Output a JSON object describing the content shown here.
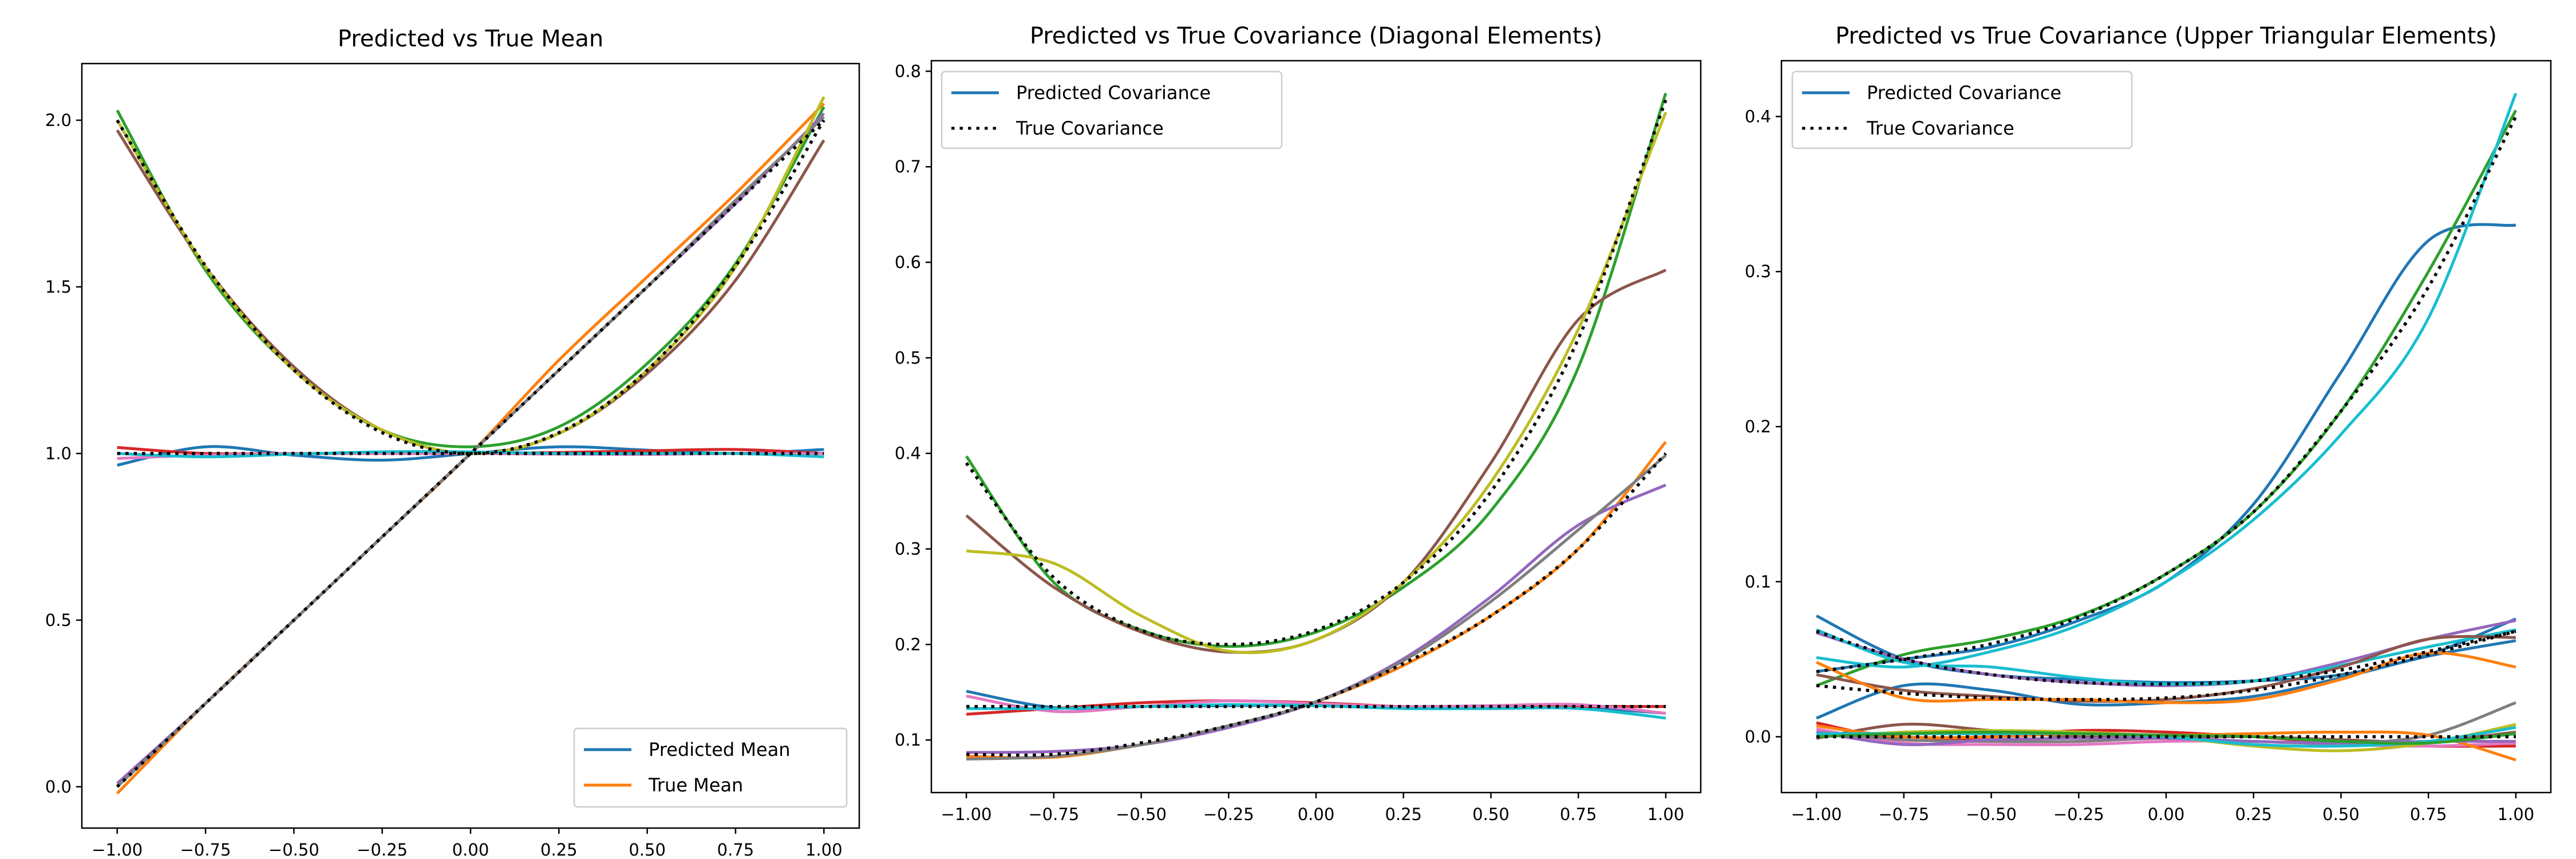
{
  "chart_data": [
    {
      "type": "line",
      "title": "Predicted vs True Mean",
      "xlabel": "",
      "ylabel": "",
      "xlim": [
        -1.1,
        1.1
      ],
      "ylim": [
        -0.124,
        2.17
      ],
      "xticks": [
        -1.0,
        -0.75,
        -0.5,
        -0.25,
        0.0,
        0.25,
        0.5,
        0.75,
        1.0
      ],
      "xtick_labels": [
        "−1.00",
        "−0.75",
        "−0.50",
        "−0.25",
        "0.00",
        "0.25",
        "0.50",
        "0.75",
        "1.00"
      ],
      "yticks": [
        0.0,
        0.5,
        1.0,
        1.5,
        2.0
      ],
      "ytick_labels": [
        "0.0",
        "0.5",
        "1.0",
        "1.5",
        "2.0"
      ],
      "legend": {
        "placement": "lower-right",
        "entries": [
          {
            "label": "Predicted Mean",
            "color": "#1f77b4",
            "style": "solid"
          },
          {
            "label": "True Mean",
            "color": "#ff7f0e",
            "style": "solid"
          }
        ]
      },
      "x": [
        -1.0,
        -0.75,
        -0.5,
        -0.25,
        0.0,
        0.25,
        0.5,
        0.75,
        1.0
      ],
      "series": [
        {
          "name": "pred-1",
          "color": "#1f77b4",
          "style": "solid",
          "values": [
            0.965,
            1.02,
            0.995,
            0.98,
            1.0,
            1.02,
            1.01,
            1.0,
            1.012
          ]
        },
        {
          "name": "pred-2",
          "color": "#ff7f0e",
          "style": "solid",
          "values": [
            -0.02,
            0.25,
            0.5,
            0.75,
            1.0,
            1.28,
            1.53,
            1.78,
            2.05
          ]
        },
        {
          "name": "pred-3",
          "color": "#2ca02c",
          "style": "solid",
          "values": [
            2.03,
            1.55,
            1.25,
            1.07,
            1.02,
            1.08,
            1.27,
            1.57,
            2.04
          ]
        },
        {
          "name": "pred-4",
          "color": "#d62728",
          "style": "solid",
          "values": [
            1.018,
            1.0,
            1.0,
            1.0,
            1.0,
            1.003,
            1.008,
            1.012,
            1.0
          ]
        },
        {
          "name": "pred-5",
          "color": "#9467bd",
          "style": "solid",
          "values": [
            0.01,
            0.25,
            0.5,
            0.75,
            1.0,
            1.25,
            1.5,
            1.75,
            2.02
          ]
        },
        {
          "name": "pred-6",
          "color": "#8c564b",
          "style": "solid",
          "values": [
            1.97,
            1.56,
            1.26,
            1.07,
            1.0,
            1.06,
            1.24,
            1.52,
            1.94
          ]
        },
        {
          "name": "pred-7",
          "color": "#e377c2",
          "style": "solid",
          "values": [
            0.985,
            0.995,
            1.0,
            1.0,
            1.0,
            0.998,
            0.997,
            1.0,
            1.0
          ]
        },
        {
          "name": "pred-8",
          "color": "#7f7f7f",
          "style": "solid",
          "values": [
            0.0,
            0.25,
            0.5,
            0.75,
            1.0,
            1.25,
            1.5,
            1.76,
            2.01
          ]
        },
        {
          "name": "pred-9",
          "color": "#bcbd22",
          "style": "solid",
          "values": [
            2.0,
            1.56,
            1.25,
            1.07,
            1.0,
            1.06,
            1.25,
            1.56,
            2.07
          ]
        },
        {
          "name": "pred-10",
          "color": "#17becf",
          "style": "solid",
          "values": [
            1.0,
            0.99,
            0.998,
            1.005,
            1.005,
            1.0,
            1.0,
            1.0,
            0.99
          ]
        },
        {
          "name": "true-1",
          "color": "#000000",
          "style": "dotted",
          "values": [
            1.0,
            1.0,
            1.0,
            1.0,
            1.0,
            1.0,
            1.0,
            1.0,
            1.0
          ]
        },
        {
          "name": "true-2",
          "color": "#000000",
          "style": "dotted",
          "values": [
            0.0,
            0.25,
            0.5,
            0.75,
            1.0,
            1.25,
            1.5,
            1.75,
            2.0
          ]
        },
        {
          "name": "true-3",
          "color": "#000000",
          "style": "dotted",
          "values": [
            2.0,
            1.5625,
            1.25,
            1.0625,
            1.0,
            1.0625,
            1.25,
            1.5625,
            2.0
          ]
        }
      ]
    },
    {
      "type": "line",
      "title": "Predicted vs True Covariance (Diagonal Elements)",
      "xlabel": "",
      "ylabel": "",
      "xlim": [
        -1.1,
        1.1
      ],
      "ylim": [
        0.045,
        0.811
      ],
      "xticks": [
        -1.0,
        -0.75,
        -0.5,
        -0.25,
        0.0,
        0.25,
        0.5,
        0.75,
        1.0
      ],
      "xtick_labels": [
        "−1.00",
        "−0.75",
        "−0.50",
        "−0.25",
        "0.00",
        "0.25",
        "0.50",
        "0.75",
        "1.00"
      ],
      "yticks": [
        0.1,
        0.2,
        0.3,
        0.4,
        0.5,
        0.6,
        0.7,
        0.8
      ],
      "ytick_labels": [
        "0.1",
        "0.2",
        "0.3",
        "0.4",
        "0.5",
        "0.6",
        "0.7",
        "0.8"
      ],
      "legend": {
        "placement": "upper-left",
        "entries": [
          {
            "label": "Predicted Covariance",
            "color": "#1f77b4",
            "style": "solid"
          },
          {
            "label": "True Covariance",
            "color": "#000000",
            "style": "dotted"
          }
        ]
      },
      "x": [
        -1.0,
        -0.75,
        -0.5,
        -0.25,
        0.0,
        0.25,
        0.5,
        0.75,
        1.0
      ],
      "series": [
        {
          "name": "pred-1",
          "color": "#1f77b4",
          "style": "solid",
          "values": [
            0.151,
            0.134,
            0.135,
            0.136,
            0.136,
            0.134,
            0.133,
            0.134,
            0.128
          ]
        },
        {
          "name": "pred-2",
          "color": "#ff7f0e",
          "style": "solid",
          "values": [
            0.083,
            0.082,
            0.095,
            0.114,
            0.14,
            0.178,
            0.23,
            0.3,
            0.412
          ]
        },
        {
          "name": "pred-3",
          "color": "#2ca02c",
          "style": "solid",
          "values": [
            0.397,
            0.265,
            0.215,
            0.198,
            0.213,
            0.26,
            0.34,
            0.49,
            0.777
          ]
        },
        {
          "name": "pred-4",
          "color": "#d62728",
          "style": "solid",
          "values": [
            0.127,
            0.133,
            0.139,
            0.141,
            0.139,
            0.135,
            0.135,
            0.135,
            0.135
          ]
        },
        {
          "name": "pred-5",
          "color": "#9467bd",
          "style": "solid",
          "values": [
            0.087,
            0.088,
            0.095,
            0.113,
            0.14,
            0.185,
            0.25,
            0.325,
            0.367
          ]
        },
        {
          "name": "pred-6",
          "color": "#8c564b",
          "style": "solid",
          "values": [
            0.335,
            0.26,
            0.213,
            0.192,
            0.205,
            0.265,
            0.39,
            0.54,
            0.592
          ]
        },
        {
          "name": "pred-7",
          "color": "#e377c2",
          "style": "solid",
          "values": [
            0.146,
            0.13,
            0.135,
            0.141,
            0.138,
            0.135,
            0.136,
            0.137,
            0.128
          ]
        },
        {
          "name": "pred-8",
          "color": "#7f7f7f",
          "style": "solid",
          "values": [
            0.08,
            0.083,
            0.095,
            0.115,
            0.14,
            0.183,
            0.245,
            0.32,
            0.398
          ]
        },
        {
          "name": "pred-9",
          "color": "#bcbd22",
          "style": "solid",
          "values": [
            0.298,
            0.285,
            0.23,
            0.193,
            0.205,
            0.265,
            0.37,
            0.53,
            0.757
          ]
        },
        {
          "name": "pred-10",
          "color": "#17becf",
          "style": "solid",
          "values": [
            0.133,
            0.133,
            0.135,
            0.137,
            0.136,
            0.133,
            0.133,
            0.133,
            0.123
          ]
        },
        {
          "name": "true-1",
          "color": "#000000",
          "style": "dotted",
          "values": [
            0.39,
            0.27,
            0.215,
            0.2,
            0.215,
            0.265,
            0.36,
            0.52,
            0.77
          ]
        },
        {
          "name": "true-2",
          "color": "#000000",
          "style": "dotted",
          "values": [
            0.085,
            0.085,
            0.097,
            0.115,
            0.14,
            0.18,
            0.23,
            0.3,
            0.4
          ]
        },
        {
          "name": "true-3",
          "color": "#000000",
          "style": "dotted",
          "values": [
            0.135,
            0.135,
            0.135,
            0.135,
            0.135,
            0.135,
            0.135,
            0.135,
            0.135
          ]
        }
      ]
    },
    {
      "type": "line",
      "title": "Predicted vs True Covariance (Upper Triangular Elements)",
      "xlabel": "",
      "ylabel": "",
      "xlim": [
        -1.1,
        1.1
      ],
      "ylim": [
        -0.036,
        0.436
      ],
      "xticks": [
        -1.0,
        -0.75,
        -0.5,
        -0.25,
        0.0,
        0.25,
        0.5,
        0.75,
        1.0
      ],
      "xtick_labels": [
        "−1.00",
        "−0.75",
        "−0.50",
        "−0.25",
        "0.00",
        "0.25",
        "0.50",
        "0.75",
        "1.00"
      ],
      "yticks": [
        0.0,
        0.1,
        0.2,
        0.3,
        0.4
      ],
      "ytick_labels": [
        "0.0",
        "0.1",
        "0.2",
        "0.3",
        "0.4"
      ],
      "legend": {
        "placement": "upper-left",
        "entries": [
          {
            "label": "Predicted Covariance",
            "color": "#1f77b4",
            "style": "solid"
          },
          {
            "label": "True Covariance",
            "color": "#000000",
            "style": "dotted"
          }
        ]
      },
      "x": [
        -1.0,
        -0.75,
        -0.5,
        -0.25,
        0.0,
        0.25,
        0.5,
        0.75,
        1.0
      ],
      "series": [
        {
          "name": "pred-1",
          "color": "#1f77b4",
          "style": "solid",
          "values": [
            0.042,
            0.05,
            0.058,
            0.075,
            0.1,
            0.15,
            0.235,
            0.32,
            0.33
          ]
        },
        {
          "name": "pred-2",
          "color": "#2ca02c",
          "style": "solid",
          "values": [
            0.033,
            0.053,
            0.063,
            0.078,
            0.105,
            0.145,
            0.21,
            0.3,
            0.404
          ]
        },
        {
          "name": "pred-3",
          "color": "#17becf",
          "style": "solid",
          "values": [
            0.051,
            0.045,
            0.055,
            0.072,
            0.1,
            0.14,
            0.195,
            0.27,
            0.415
          ]
        },
        {
          "name": "pred-4",
          "color": "#1f77b4",
          "style": "solid",
          "values": [
            0.078,
            0.05,
            0.04,
            0.037,
            0.035,
            0.036,
            0.04,
            0.053,
            0.076
          ]
        },
        {
          "name": "pred-5",
          "color": "#9467bd",
          "style": "solid",
          "values": [
            0.067,
            0.05,
            0.04,
            0.035,
            0.033,
            0.036,
            0.048,
            0.063,
            0.075
          ]
        },
        {
          "name": "pred-6",
          "color": "#17becf",
          "style": "solid",
          "values": [
            0.069,
            0.048,
            0.045,
            0.038,
            0.034,
            0.036,
            0.046,
            0.058,
            0.069
          ]
        },
        {
          "name": "pred-7",
          "color": "#1f77b4",
          "style": "solid",
          "values": [
            0.012,
            0.033,
            0.03,
            0.021,
            0.022,
            0.026,
            0.038,
            0.052,
            0.062
          ]
        },
        {
          "name": "pred-8",
          "color": "#8c564b",
          "style": "solid",
          "values": [
            0.04,
            0.03,
            0.026,
            0.023,
            0.024,
            0.031,
            0.045,
            0.063,
            0.064
          ]
        },
        {
          "name": "pred-9",
          "color": "#ff7f0e",
          "style": "solid",
          "values": [
            0.048,
            0.025,
            0.024,
            0.024,
            0.022,
            0.024,
            0.037,
            0.054,
            0.045
          ]
        },
        {
          "name": "pred-10",
          "color": "#8c564b",
          "style": "solid",
          "values": [
            -0.001,
            0.008,
            0.004,
            0.0,
            0.0,
            0.0,
            -0.002,
            -0.003,
            0.003
          ]
        },
        {
          "name": "pred-11",
          "color": "#d62728",
          "style": "solid",
          "values": [
            0.009,
            -0.002,
            0.0,
            0.004,
            0.003,
            0.0,
            -0.004,
            -0.006,
            -0.006
          ]
        },
        {
          "name": "pred-12",
          "color": "#e377c2",
          "style": "solid",
          "values": [
            0.005,
            -0.004,
            -0.005,
            -0.005,
            -0.003,
            -0.003,
            -0.005,
            -0.006,
            -0.004
          ]
        },
        {
          "name": "pred-13",
          "color": "#7f7f7f",
          "style": "solid",
          "values": [
            0.003,
            -0.002,
            -0.003,
            -0.003,
            -0.001,
            -0.003,
            -0.004,
            0.001,
            0.022
          ]
        },
        {
          "name": "pred-14",
          "color": "#bcbd22",
          "style": "solid",
          "values": [
            0.0,
            0.003,
            0.004,
            0.003,
            0.0,
            -0.006,
            -0.009,
            -0.004,
            0.008
          ]
        },
        {
          "name": "pred-15",
          "color": "#ff7f0e",
          "style": "solid",
          "values": [
            0.007,
            0.0,
            0.0,
            0.002,
            0.001,
            0.002,
            0.003,
            0.001,
            -0.015
          ]
        },
        {
          "name": "pred-16",
          "color": "#9467bd",
          "style": "solid",
          "values": [
            0.003,
            -0.005,
            -0.002,
            -0.001,
            -0.001,
            -0.003,
            -0.004,
            -0.003,
            -0.003
          ]
        },
        {
          "name": "pred-17",
          "color": "#17becf",
          "style": "solid",
          "values": [
            0.002,
            0.002,
            0.002,
            0.002,
            0.0,
            -0.005,
            -0.006,
            -0.003,
            0.006
          ]
        },
        {
          "name": "pred-18",
          "color": "#2ca02c",
          "style": "solid",
          "values": [
            0.0,
            0.002,
            0.003,
            0.002,
            0.001,
            0.0,
            -0.003,
            -0.004,
            0.002
          ]
        },
        {
          "name": "true-1",
          "color": "#000000",
          "style": "dotted",
          "values": [
            0.042,
            0.05,
            0.06,
            0.077,
            0.105,
            0.145,
            0.21,
            0.29,
            0.4
          ]
        },
        {
          "name": "true-2",
          "color": "#000000",
          "style": "dotted",
          "values": [
            0.068,
            0.05,
            0.04,
            0.035,
            0.034,
            0.036,
            0.043,
            0.055,
            0.068
          ]
        },
        {
          "name": "true-3",
          "color": "#000000",
          "style": "dotted",
          "values": [
            0.033,
            0.028,
            0.025,
            0.024,
            0.025,
            0.03,
            0.04,
            0.053,
            0.068
          ]
        },
        {
          "name": "true-4",
          "color": "#000000",
          "style": "dotted",
          "values": [
            0.0,
            0.0,
            0.0,
            0.0,
            0.0,
            0.0,
            0.0,
            0.0,
            0.0
          ]
        }
      ]
    }
  ]
}
